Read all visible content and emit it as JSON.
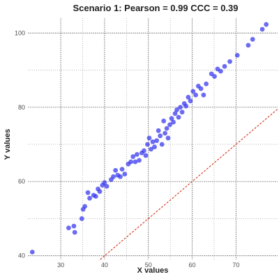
{
  "chart_data": {
    "type": "scatter",
    "title": "Scenario 1: Pearson = 0.99 CCC = 0.39",
    "xlabel": "X values",
    "ylabel": "Y values",
    "xlim": [
      22.5,
      79.5
    ],
    "ylim": [
      39.0,
      104.0
    ],
    "x_ticks": [
      30,
      40,
      50,
      60,
      70
    ],
    "y_ticks": [
      40,
      60,
      80,
      100
    ],
    "grid": true,
    "point_color": "#3333ee",
    "reference_line": {
      "label": "",
      "slope": 1,
      "intercept": 0,
      "color": "#cc2200",
      "style": "dashed"
    },
    "series": [
      {
        "name": "",
        "points": [
          [
            23.5,
            41.0
          ],
          [
            31.8,
            47.5
          ],
          [
            33.0,
            48.0
          ],
          [
            33.2,
            46.3
          ],
          [
            34.8,
            50.0
          ],
          [
            35.1,
            52.5
          ],
          [
            35.5,
            53.3
          ],
          [
            36.2,
            57.0
          ],
          [
            36.6,
            55.5
          ],
          [
            37.5,
            56.3
          ],
          [
            38.0,
            56.0
          ],
          [
            38.5,
            58.0
          ],
          [
            38.9,
            57.3
          ],
          [
            39.5,
            59.0
          ],
          [
            40.0,
            59.7
          ],
          [
            40.5,
            58.7
          ],
          [
            41.5,
            60.5
          ],
          [
            42.0,
            61.3
          ],
          [
            42.5,
            63.0
          ],
          [
            43.0,
            61.7
          ],
          [
            43.6,
            61.3
          ],
          [
            44.0,
            63.3
          ],
          [
            44.6,
            62.0
          ],
          [
            45.4,
            64.7
          ],
          [
            46.0,
            65.3
          ],
          [
            46.5,
            66.7
          ],
          [
            47.0,
            65.3
          ],
          [
            47.4,
            67.3
          ],
          [
            47.9,
            65.7
          ],
          [
            48.5,
            67.7
          ],
          [
            49.0,
            68.3
          ],
          [
            49.4,
            67.0
          ],
          [
            49.8,
            70.0
          ],
          [
            50.2,
            71.7
          ],
          [
            50.6,
            68.7
          ],
          [
            51.0,
            70.7
          ],
          [
            51.4,
            69.3
          ],
          [
            51.9,
            71.0
          ],
          [
            52.3,
            73.7
          ],
          [
            52.7,
            72.3
          ],
          [
            53.1,
            70.0
          ],
          [
            53.5,
            76.3
          ],
          [
            53.8,
            73.0
          ],
          [
            54.2,
            74.3
          ],
          [
            54.5,
            71.7
          ],
          [
            54.9,
            75.3
          ],
          [
            55.3,
            77.0
          ],
          [
            55.7,
            76.0
          ],
          [
            56.1,
            78.3
          ],
          [
            56.5,
            79.3
          ],
          [
            56.9,
            77.3
          ],
          [
            57.3,
            80.0
          ],
          [
            57.7,
            78.7
          ],
          [
            58.2,
            81.0
          ],
          [
            58.6,
            80.3
          ],
          [
            59.1,
            82.7
          ],
          [
            59.6,
            81.7
          ],
          [
            60.2,
            84.3
          ],
          [
            60.8,
            83.3
          ],
          [
            61.4,
            85.7
          ],
          [
            62.0,
            85.0
          ],
          [
            62.6,
            83.3
          ],
          [
            63.2,
            86.3
          ],
          [
            64.4,
            89.0
          ],
          [
            65.1,
            88.3
          ],
          [
            65.8,
            90.3
          ],
          [
            66.5,
            89.7
          ],
          [
            67.4,
            91.0
          ],
          [
            68.6,
            92.3
          ],
          [
            70.3,
            94.0
          ],
          [
            72.8,
            96.7
          ],
          [
            73.8,
            98.3
          ],
          [
            76.0,
            101.0
          ],
          [
            76.9,
            102.3
          ]
        ]
      }
    ]
  }
}
